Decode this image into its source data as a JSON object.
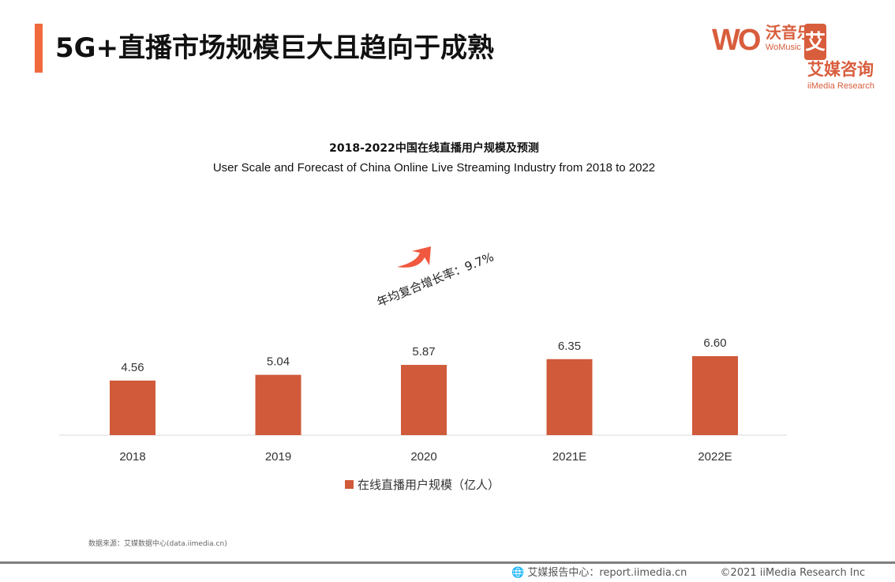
{
  "header": {
    "title": "5G+直播市场规模巨大且趋向于成熟",
    "accent_color": "#f06a3e"
  },
  "logos": {
    "womusic": {
      "mark": "WO",
      "cn": "沃音乐",
      "en": "WoMusic"
    },
    "iimedia": {
      "mark": "艾",
      "cn": "艾媒咨询",
      "en": "iiMedia Research"
    }
  },
  "chart_data": {
    "type": "bar",
    "title": "2018-2022中国在线直播用户规模及预测",
    "subtitle": "User Scale and Forecast of China Online Live Streaming Industry from 2018 to 2022",
    "categories": [
      "2018",
      "2019",
      "2020",
      "2021E",
      "2022E"
    ],
    "series": [
      {
        "name": "在线直播用户规模（亿人）",
        "values": [
          4.56,
          5.04,
          5.87,
          6.35,
          6.6
        ],
        "color": "#d05a3a"
      }
    ],
    "data_labels": [
      "4.56",
      "5.04",
      "5.87",
      "6.35",
      "6.60"
    ],
    "annotation": "年均复合增长率：9.7%",
    "arrow_color": "#f0583f",
    "ylim": [
      0,
      7
    ],
    "grid": false,
    "legend": "bottom"
  },
  "footer": {
    "source": "数据来源：艾媒数据中心(data.iimedia.cn)",
    "report": "艾媒报告中心：report.iimedia.cn",
    "copyright": "©2021  iiMedia Research  Inc"
  }
}
